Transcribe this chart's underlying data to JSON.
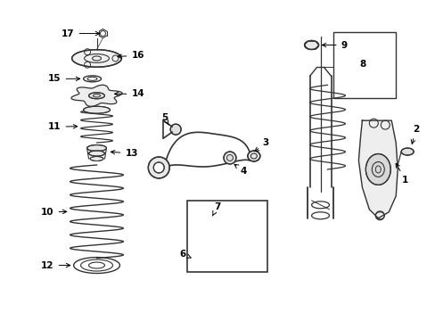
{
  "bg_color": "#ffffff",
  "line_color": "#333333",
  "text_color": "#000000",
  "fig_width": 4.89,
  "fig_height": 3.6,
  "dpi": 100
}
